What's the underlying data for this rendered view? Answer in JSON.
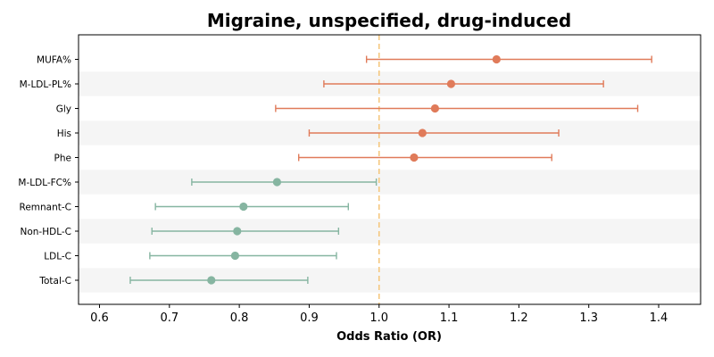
{
  "chart_data": {
    "type": "forest",
    "title": "Migraine, unspecified, drug-induced",
    "xlabel": "Odds Ratio (OR)",
    "ylabel": "",
    "xlim": [
      0.57,
      1.46
    ],
    "xticks": [
      "0.6",
      "0.7",
      "0.8",
      "0.9",
      "1.0",
      "1.1",
      "1.2",
      "1.3",
      "1.4"
    ],
    "reference_line": 1.0,
    "reference_color": "#f5c77e",
    "positive_color": "#e07b5a",
    "negative_color": "#86b5a1",
    "band_color": "#f5f5f5",
    "rows": [
      {
        "label": "MUFA%",
        "or": 1.168,
        "low": 0.982,
        "high": 1.39
      },
      {
        "label": "M-LDL-PL%",
        "or": 1.103,
        "low": 0.921,
        "high": 1.321
      },
      {
        "label": "Gly",
        "or": 1.08,
        "low": 0.852,
        "high": 1.37
      },
      {
        "label": "His",
        "or": 1.062,
        "low": 0.9,
        "high": 1.257
      },
      {
        "label": "Phe",
        "or": 1.05,
        "low": 0.885,
        "high": 1.247
      },
      {
        "label": "M-LDL-FC%",
        "or": 0.854,
        "low": 0.732,
        "high": 0.996
      },
      {
        "label": "Remnant-C",
        "or": 0.806,
        "low": 0.68,
        "high": 0.956
      },
      {
        "label": "Non-HDL-C",
        "or": 0.797,
        "low": 0.675,
        "high": 0.942
      },
      {
        "label": "LDL-C",
        "or": 0.794,
        "low": 0.672,
        "high": 0.939
      },
      {
        "label": "Total-C",
        "or": 0.76,
        "low": 0.644,
        "high": 0.898
      }
    ]
  }
}
